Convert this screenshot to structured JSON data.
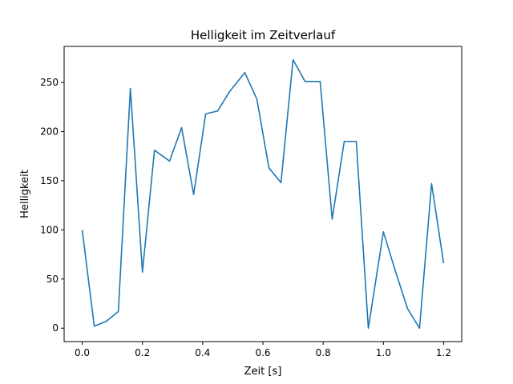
{
  "chart_data": {
    "type": "line",
    "title": "Helligkeit im Zeitverlauf",
    "xlabel": "Zeit [s]",
    "ylabel": "Helligkeit",
    "xlim": [
      -0.06,
      1.26
    ],
    "ylim": [
      -13.65,
      286.65
    ],
    "x_ticks": [
      0.0,
      0.2,
      0.4,
      0.6,
      0.8,
      1.0,
      1.2
    ],
    "x_tick_labels": [
      "0.0",
      "0.2",
      "0.4",
      "0.6",
      "0.8",
      "1.0",
      "1.2"
    ],
    "y_ticks": [
      0,
      50,
      100,
      150,
      200,
      250
    ],
    "y_tick_labels": [
      "0",
      "50",
      "100",
      "150",
      "200",
      "250"
    ],
    "grid": false,
    "legend": "none",
    "series": [
      {
        "color": "#1f77b4",
        "x": [
          0.0,
          0.04,
          0.08,
          0.12,
          0.16,
          0.2,
          0.24,
          0.29,
          0.33,
          0.37,
          0.41,
          0.45,
          0.49,
          0.54,
          0.58,
          0.62,
          0.66,
          0.7,
          0.74,
          0.79,
          0.83,
          0.87,
          0.91,
          0.95,
          1.0,
          1.04,
          1.08,
          1.12,
          1.16,
          1.2
        ],
        "y": [
          100,
          2,
          7,
          17,
          244,
          57,
          181,
          170,
          204,
          136,
          218,
          221,
          241,
          260,
          233,
          163,
          148,
          273,
          251,
          251,
          111,
          190,
          190,
          0,
          98,
          58,
          20,
          0,
          147,
          66
        ]
      }
    ]
  }
}
